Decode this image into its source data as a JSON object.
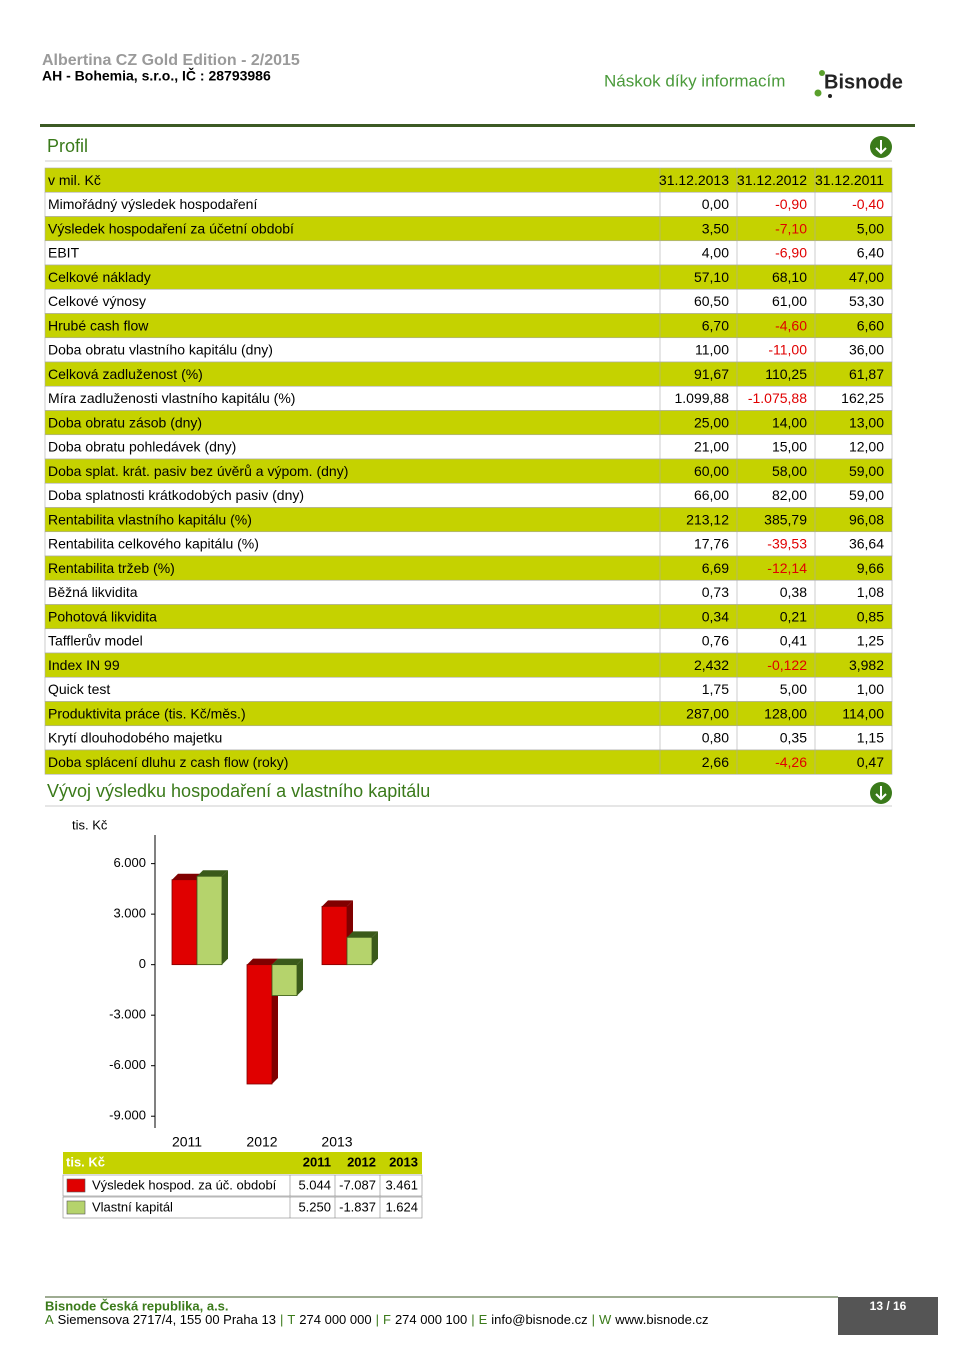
{
  "header": {
    "title": "Albertina CZ Gold Edition - 2/2015",
    "company": "AH - Bohemia, s.r.o., IČ : 28793986",
    "slogan": "Náskok díky informacím",
    "logo": "Bisnode"
  },
  "profile": {
    "title": "Profil",
    "columns": [
      "v mil. Kč",
      "31.12.2013",
      "31.12.2012",
      "31.12.2011"
    ],
    "rows": [
      [
        "Mimořádný výsledek hospodaření",
        "0,00",
        "-0,90",
        "-0,40"
      ],
      [
        "Výsledek hospodaření za účetní období",
        "3,50",
        "-7,10",
        "5,00"
      ],
      [
        "EBIT",
        "4,00",
        "-6,90",
        "6,40"
      ],
      [
        "Celkové náklady",
        "57,10",
        "68,10",
        "47,00"
      ],
      [
        "Celkové výnosy",
        "60,50",
        "61,00",
        "53,30"
      ],
      [
        "Hrubé cash flow",
        "6,70",
        "-4,60",
        "6,60"
      ],
      [
        "Doba obratu vlastního kapitálu (dny)",
        "11,00",
        "-11,00",
        "36,00"
      ],
      [
        "Celková zadluženost (%)",
        "91,67",
        "110,25",
        "61,87"
      ],
      [
        "Míra zadluženosti vlastního kapitálu (%)",
        "1.099,88",
        "-1.075,88",
        "162,25"
      ],
      [
        "Doba obratu zásob (dny)",
        "25,00",
        "14,00",
        "13,00"
      ],
      [
        "Doba obratu pohledávek (dny)",
        "21,00",
        "15,00",
        "12,00"
      ],
      [
        "Doba splat. krát. pasiv bez úvěrů a výpom. (dny)",
        "60,00",
        "58,00",
        "59,00"
      ],
      [
        "Doba splatnosti krátkodobých pasiv (dny)",
        "66,00",
        "82,00",
        "59,00"
      ],
      [
        "Rentabilita vlastního kapitálu (%)",
        "213,12",
        "385,79",
        "96,08"
      ],
      [
        "Rentabilita celkového kapitálu (%)",
        "17,76",
        "-39,53",
        "36,64"
      ],
      [
        "Rentabilita tržeb (%)",
        "6,69",
        "-12,14",
        "9,66"
      ],
      [
        "Běžná likvidita",
        "0,73",
        "0,38",
        "1,08"
      ],
      [
        "Pohotová likvidita",
        "0,34",
        "0,21",
        "0,85"
      ],
      [
        "Tafflerův model",
        "0,76",
        "0,41",
        "1,25"
      ],
      [
        "Index IN 99",
        "2,432",
        "-0,122",
        "3,982"
      ],
      [
        "Quick test",
        "1,75",
        "5,00",
        "1,00"
      ],
      [
        "Produktivita práce (tis. Kč/měs.)",
        "287,00",
        "128,00",
        "114,00"
      ],
      [
        "Krytí dlouhodobého majetku",
        "0,80",
        "0,35",
        "1,15"
      ],
      [
        "Doba splácení dluhu z cash flow (roky)",
        "2,66",
        "-4,26",
        "0,47"
      ]
    ]
  },
  "chart_section": {
    "title": "Vývoj výsledku hospodaření a vlastního kapitálu",
    "data_table_header": "tis. Kč"
  },
  "chart_data": {
    "type": "bar",
    "ylabel": "tis. Kč",
    "categories": [
      "2011",
      "2012",
      "2013"
    ],
    "series": [
      {
        "name": "Výsledek hospod. za úč. období",
        "color": "#e00000",
        "values": [
          5044,
          -7087,
          3461
        ],
        "value_labels": [
          "5.044",
          "-7.087",
          "3.461"
        ]
      },
      {
        "name": "Vlastní kapitál",
        "color": "#b5d36c",
        "values": [
          5250,
          -1837,
          1624
        ],
        "value_labels": [
          "5.250",
          "-1.837",
          "1.624"
        ]
      }
    ],
    "ylim": [
      -9700,
      7700
    ],
    "yticks": [
      {
        "value": 6000,
        "label": "6.000"
      },
      {
        "value": 3000,
        "label": "3.000"
      },
      0,
      {
        "value": -3000,
        "label": "-3.000"
      },
      {
        "value": -6000,
        "label": "-6.000"
      },
      {
        "value": -9000,
        "label": "-9.000"
      }
    ]
  },
  "footer": {
    "company": "Bisnode Česká republika, a.s.",
    "separator": "|",
    "address": [
      {
        "key": "A",
        "text": "Siemensova 2717/4, 155 00 Praha 13"
      },
      {
        "key": "T",
        "text": "274 000 000"
      },
      {
        "key": "F",
        "text": "274 000 100"
      },
      {
        "key": "E",
        "text": "info@bisnode.cz"
      },
      {
        "key": "W",
        "text": "www.bisnode.cz"
      }
    ],
    "page": "13 / 16"
  }
}
